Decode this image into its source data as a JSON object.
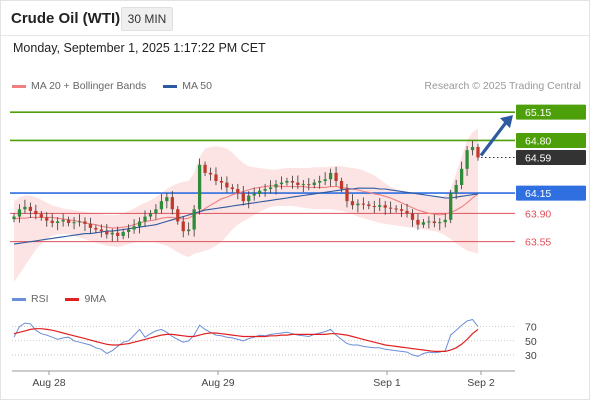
{
  "header": {
    "title": "Crude Oil (WTI)",
    "timeframe": "30 MIN",
    "datetime": "Monday, September 1, 2025 1:17:22 PM CET"
  },
  "credit": "Research © 2025 Trading Central",
  "legend": {
    "price": [
      {
        "label": "MA 20 + Bollinger Bands",
        "color": "#f08080"
      },
      {
        "label": "MA 50",
        "color": "#2d5aa0"
      }
    ],
    "rsi": [
      {
        "label": "RSI",
        "color": "#6b8ed8"
      },
      {
        "label": "9MA",
        "color": "#e02020"
      }
    ]
  },
  "colors": {
    "up": "#2e8b3a",
    "down": "#c0392b",
    "resistance": "#4ea00b",
    "pivot": "#2f6fe0",
    "support": "#e0505a",
    "current": "#333333",
    "arrow": "#2d5aa0",
    "band_fill": "#fde4e4"
  },
  "chart_data": {
    "type": "candlestick",
    "y_range": [
      63.2,
      65.3
    ],
    "x_ticks": [
      "Aug 28",
      "Aug 29",
      "Sep 1",
      "Sep 2"
    ],
    "current_price": 64.59,
    "levels": [
      {
        "value": 65.15,
        "label": "65.15",
        "kind": "resistance"
      },
      {
        "value": 64.8,
        "label": "64.80",
        "kind": "resistance"
      },
      {
        "value": 64.15,
        "label": "64.15",
        "kind": "pivot"
      },
      {
        "value": 63.9,
        "label": "63.90",
        "kind": "support"
      },
      {
        "value": 63.55,
        "label": "63.55",
        "kind": "support"
      }
    ],
    "close": [
      63.86,
      63.95,
      63.98,
      63.93,
      63.89,
      63.85,
      63.81,
      63.78,
      63.8,
      63.82,
      63.78,
      63.79,
      63.8,
      63.77,
      63.72,
      63.7,
      63.68,
      63.64,
      63.66,
      63.62,
      63.67,
      63.7,
      63.74,
      63.8,
      63.86,
      63.9,
      63.95,
      64.05,
      64.1,
      63.95,
      63.8,
      63.68,
      63.7,
      63.95,
      64.5,
      64.4,
      64.38,
      64.3,
      64.28,
      64.22,
      64.2,
      64.15,
      64.05,
      64.12,
      64.14,
      64.18,
      64.2,
      64.22,
      64.26,
      64.28,
      64.3,
      64.28,
      64.25,
      64.26,
      64.25,
      64.28,
      64.3,
      64.32,
      64.4,
      64.3,
      64.2,
      64.05,
      64.0,
      64.02,
      64.01,
      63.99,
      63.98,
      64.0,
      63.97,
      63.96,
      63.95,
      63.93,
      63.9,
      63.82,
      63.76,
      63.79,
      63.8,
      63.78,
      63.79,
      63.82,
      64.15,
      64.25,
      64.45,
      64.68,
      64.72,
      64.59
    ],
    "ma20": [
      63.83,
      63.84,
      63.84,
      63.85,
      63.85,
      63.85,
      63.85,
      63.85,
      63.84,
      63.83,
      63.82,
      63.81,
      63.8,
      63.78,
      63.77,
      63.76,
      63.74,
      63.73,
      63.72,
      63.72,
      63.73,
      63.74,
      63.76,
      63.78,
      63.8,
      63.81,
      63.82,
      63.84,
      63.85,
      63.85,
      63.84,
      63.83,
      63.84,
      63.88,
      63.92,
      63.96,
      64.0,
      64.04,
      64.08,
      64.1,
      64.13,
      64.15,
      64.17,
      64.19,
      64.21,
      64.22,
      64.23,
      64.24,
      64.24,
      64.23,
      64.23,
      64.23,
      64.23,
      64.23,
      64.22,
      64.22,
      64.22,
      64.22,
      64.23,
      64.23,
      64.22,
      64.21,
      64.2,
      64.19,
      64.17,
      64.16,
      64.14,
      64.13,
      64.11,
      64.09,
      64.06,
      64.03,
      64.0,
      63.97,
      63.94,
      63.92,
      63.9,
      63.89,
      63.88,
      63.89,
      63.91,
      63.94,
      63.98,
      64.03,
      64.09,
      64.14
    ],
    "bb_upper": [
      64.05,
      64.1,
      64.12,
      64.12,
      64.1,
      64.07,
      64.03,
      64.0,
      63.98,
      63.96,
      63.95,
      63.94,
      63.93,
      63.92,
      63.91,
      63.9,
      63.89,
      63.88,
      63.88,
      63.88,
      63.9,
      63.93,
      63.96,
      64.0,
      64.03,
      64.06,
      64.1,
      64.15,
      64.2,
      64.24,
      64.27,
      64.29,
      64.3,
      64.4,
      64.6,
      64.7,
      64.72,
      64.73,
      64.72,
      64.7,
      64.65,
      64.58,
      64.52,
      64.48,
      64.47,
      64.46,
      64.45,
      64.44,
      64.44,
      64.45,
      64.46,
      64.46,
      64.46,
      64.46,
      64.46,
      64.47,
      64.47,
      64.47,
      64.48,
      64.48,
      64.48,
      64.47,
      64.46,
      64.45,
      64.43,
      64.4,
      64.37,
      64.32,
      64.27,
      64.23,
      64.2,
      64.18,
      64.16,
      64.15,
      64.13,
      64.12,
      64.11,
      64.1,
      64.1,
      64.12,
      64.2,
      64.4,
      64.6,
      64.8,
      64.9,
      64.95
    ],
    "bb_lower": [
      63.05,
      63.15,
      63.25,
      63.35,
      63.45,
      63.52,
      63.58,
      63.62,
      63.64,
      63.65,
      63.64,
      63.62,
      63.6,
      63.58,
      63.56,
      63.54,
      63.52,
      63.5,
      63.49,
      63.48,
      63.5,
      63.52,
      63.54,
      63.55,
      63.56,
      63.56,
      63.54,
      63.52,
      63.5,
      63.46,
      63.42,
      63.38,
      63.36,
      63.4,
      63.42,
      63.44,
      63.46,
      63.5,
      63.55,
      63.62,
      63.7,
      63.76,
      63.8,
      63.84,
      63.88,
      63.92,
      63.95,
      63.98,
      63.99,
      63.99,
      63.99,
      63.99,
      63.98,
      63.97,
      63.96,
      63.95,
      63.95,
      63.95,
      63.95,
      63.94,
      63.93,
      63.91,
      63.89,
      63.86,
      63.84,
      63.82,
      63.8,
      63.78,
      63.77,
      63.76,
      63.75,
      63.74,
      63.73,
      63.72,
      63.71,
      63.7,
      63.69,
      63.68,
      63.66,
      63.63,
      63.58,
      63.53,
      63.48,
      63.44,
      63.42,
      63.4
    ],
    "ma50": [
      63.52,
      63.53,
      63.54,
      63.55,
      63.56,
      63.57,
      63.58,
      63.59,
      63.6,
      63.61,
      63.62,
      63.63,
      63.64,
      63.65,
      63.65,
      63.66,
      63.67,
      63.68,
      63.68,
      63.69,
      63.7,
      63.71,
      63.72,
      63.73,
      63.74,
      63.75,
      63.76,
      63.78,
      63.8,
      63.82,
      63.84,
      63.86,
      63.88,
      63.9,
      63.92,
      63.94,
      63.95,
      63.96,
      63.97,
      63.98,
      63.99,
      64.0,
      64.01,
      64.02,
      64.03,
      64.04,
      64.05,
      64.06,
      64.07,
      64.08,
      64.09,
      64.1,
      64.11,
      64.12,
      64.13,
      64.14,
      64.15,
      64.16,
      64.17,
      64.18,
      64.19,
      64.2,
      64.2,
      64.21,
      64.21,
      64.21,
      64.21,
      64.2,
      64.2,
      64.19,
      64.18,
      64.17,
      64.16,
      64.15,
      64.14,
      64.13,
      64.12,
      64.11,
      64.1,
      64.09,
      64.09,
      64.1,
      64.11,
      64.12,
      64.13,
      64.14
    ],
    "rsi": {
      "levels": [
        70,
        50,
        30
      ],
      "rsi": [
        55,
        70,
        75,
        74,
        65,
        60,
        58,
        55,
        52,
        54,
        55,
        50,
        48,
        46,
        44,
        40,
        38,
        32,
        36,
        42,
        48,
        50,
        58,
        66,
        55,
        60,
        64,
        66,
        62,
        56,
        52,
        48,
        50,
        58,
        72,
        66,
        62,
        58,
        57,
        55,
        54,
        52,
        50,
        53,
        55,
        58,
        57,
        59,
        60,
        61,
        62,
        60,
        58,
        57,
        56,
        59,
        61,
        63,
        66,
        58,
        52,
        46,
        44,
        44,
        42,
        41,
        40,
        40,
        38,
        37,
        36,
        35,
        34,
        30,
        28,
        32,
        34,
        33,
        34,
        36,
        58,
        65,
        72,
        78,
        80,
        70
      ],
      "ma9": [
        60,
        62,
        64,
        66,
        67,
        67,
        66,
        65,
        63,
        61,
        59,
        57,
        55,
        53,
        51,
        49,
        47,
        45,
        44,
        44,
        45,
        46,
        48,
        50,
        52,
        54,
        56,
        58,
        59,
        59,
        58,
        57,
        56,
        56,
        58,
        60,
        61,
        61,
        60,
        59,
        58,
        57,
        56,
        56,
        56,
        56,
        56,
        57,
        57,
        58,
        58,
        59,
        59,
        59,
        59,
        59,
        59,
        59,
        60,
        60,
        59,
        58,
        56,
        54,
        52,
        50,
        48,
        46,
        44,
        43,
        42,
        41,
        40,
        39,
        38,
        37,
        36,
        35,
        35,
        35,
        37,
        40,
        45,
        52,
        60,
        66
      ]
    }
  }
}
